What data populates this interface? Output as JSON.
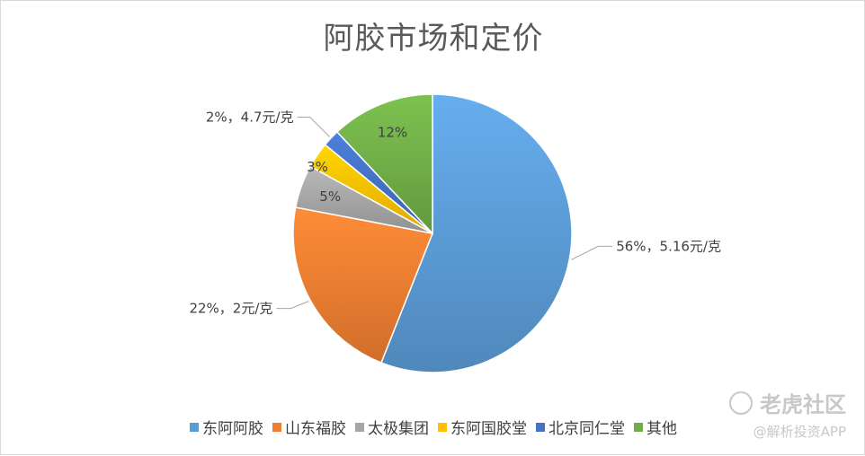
{
  "chart_data": {
    "type": "pie",
    "title": "阿胶市场和定价",
    "slices": [
      {
        "name": "东阿阿胶",
        "value": 56,
        "label": "56%，5.16元/克",
        "color": "#5b9bd5"
      },
      {
        "name": "山东福胶",
        "value": 22,
        "label": "22%，2元/克",
        "color": "#ed7d31"
      },
      {
        "name": "太极集团",
        "value": 5,
        "label": "5%",
        "color": "#a5a5a5"
      },
      {
        "name": "东阿国胶堂",
        "value": 3,
        "label": "3%",
        "color": "#ffc000"
      },
      {
        "name": "北京同仁堂",
        "value": 2,
        "label": "2%，4.7元/克",
        "color": "#4472c4"
      },
      {
        "name": "其他",
        "value": 12,
        "label": "12%",
        "color": "#70ad47"
      }
    ],
    "legend_position": "bottom"
  },
  "watermark": {
    "brand": "老虎社区",
    "handle": "@解析投资APP"
  }
}
